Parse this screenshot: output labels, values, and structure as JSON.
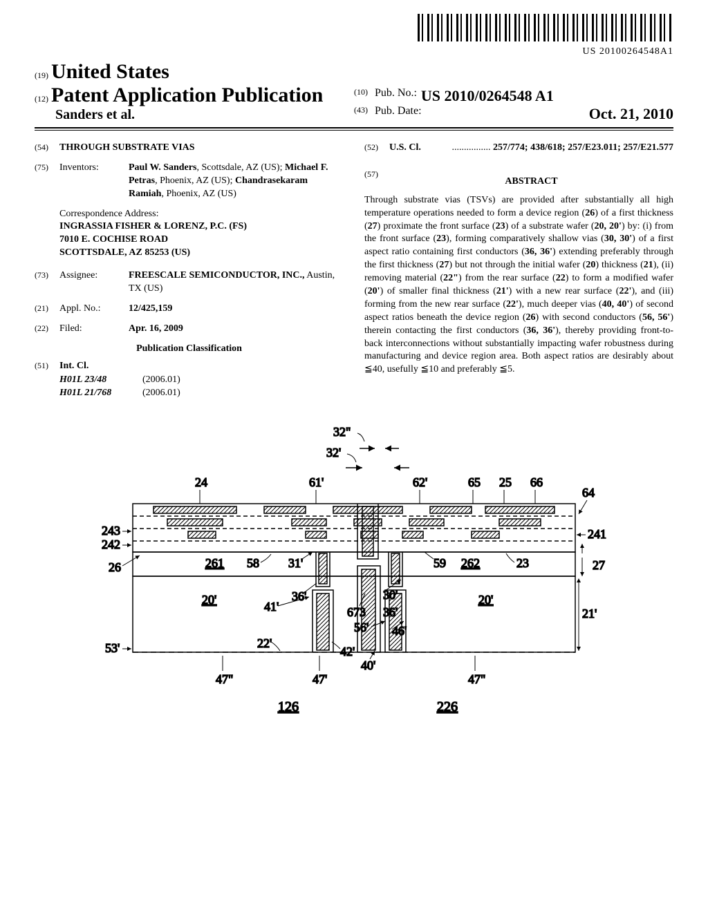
{
  "barcode_number": "US 20100264548A1",
  "header": {
    "country_code": "(19)",
    "country": "United States",
    "pub_code": "(12)",
    "pub_type": "Patent Application Publication",
    "authors": "Sanders et al.",
    "pubno_code": "(10)",
    "pubno_label": "Pub. No.:",
    "pubno_value": "US 2010/0264548 A1",
    "pubdate_code": "(43)",
    "pubdate_label": "Pub. Date:",
    "pubdate_value": "Oct. 21, 2010"
  },
  "left": {
    "title_code": "(54)",
    "title": "THROUGH SUBSTRATE VIAS",
    "inventors_code": "(75)",
    "inventors_label": "Inventors:",
    "inventors_html": "Paul W. Sanders, Scottsdale, AZ (US); Michael F. Petras, Phoenix, AZ (US); Chandrasekaram Ramiah, Phoenix, AZ (US)",
    "inventors_bold": [
      "Paul W. Sanders",
      "Michael F. Petras",
      "Chandrasekaram Ramiah"
    ],
    "corr_label": "Correspondence Address:",
    "corr_lines": [
      "INGRASSIA FISHER & LORENZ, P.C. (FS)",
      "7010 E. COCHISE ROAD",
      "SCOTTSDALE, AZ 85253 (US)"
    ],
    "assignee_code": "(73)",
    "assignee_label": "Assignee:",
    "assignee_bold": "FREESCALE SEMICONDUCTOR, INC.,",
    "assignee_rest": "Austin, TX (US)",
    "applno_code": "(21)",
    "applno_label": "Appl. No.:",
    "applno_value": "12/425,159",
    "filed_code": "(22)",
    "filed_label": "Filed:",
    "filed_value": "Apr. 16, 2009",
    "pubclass_title": "Publication Classification",
    "intcl_code": "(51)",
    "intcl_label": "Int. Cl.",
    "intcl_items": [
      {
        "code": "H01L 23/48",
        "date": "(2006.01)"
      },
      {
        "code": "H01L 21/768",
        "date": "(2006.01)"
      }
    ]
  },
  "right": {
    "uscl_code": "(52)",
    "uscl_label": "U.S. Cl.",
    "uscl_value": "257/774; 438/618; 257/E23.011; 257/E21.577",
    "abstract_code": "(57)",
    "abstract_title": "ABSTRACT",
    "abstract_text": "Through substrate vias (TSVs) are provided after substantially all high temperature operations needed to form a device region (26) of a first thickness (27) proximate the front surface (23) of a substrate wafer (20, 20') by: (i) from the front surface (23), forming comparatively shallow vias (30, 30') of a first aspect ratio containing first conductors (36, 36') extending preferably through the first thickness (27) but not through the initial wafer (20) thickness (21), (ii) removing material (22\") from the rear surface (22) to form a modified wafer (20') of smaller final thickness (21') with a new rear surface (22'), and (iii) forming from the new rear surface (22'), much deeper vias (40, 40') of second aspect ratios beneath the device region (26) with second conductors (56, 56') therein contacting the first conductors (36, 36'), thereby providing front-to-back interconnections without substantially impacting wafer robustness during manufacturing and device region area. Both aspect ratios are desirably about ≦40, usefully ≦10 and preferably ≦5."
  },
  "figure": {
    "labels": {
      "top": [
        "32\"",
        "32'"
      ],
      "upper": [
        "24",
        "61'",
        "62'",
        "65",
        "25",
        "66",
        "64"
      ],
      "mid_left": [
        "243",
        "242",
        "26"
      ],
      "mid_right": [
        "241",
        "27"
      ],
      "inner": [
        "261",
        "58",
        "31'",
        "59",
        "262",
        "23"
      ],
      "low": [
        "20'",
        "41'",
        "36'",
        "30'",
        "673",
        "36'",
        "56'",
        "46'",
        "20'",
        "21'"
      ],
      "bottom": [
        "53'",
        "22'",
        "42'",
        "40'"
      ],
      "under": [
        "47\"",
        "47'",
        "47\""
      ],
      "chips": [
        "126",
        "226"
      ]
    },
    "colors": {
      "stroke": "#000000",
      "hatch": "#000000",
      "bg": "#ffffff"
    },
    "stroke_width": 1.5
  }
}
